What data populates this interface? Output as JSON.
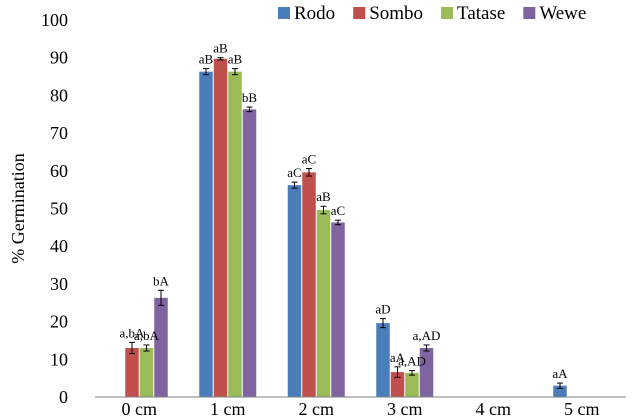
{
  "chart_data": {
    "type": "bar",
    "title": "",
    "xlabel": "",
    "ylabel": "% Germination",
    "ylim": [
      0,
      100
    ],
    "yticks": [
      0,
      10,
      20,
      30,
      40,
      50,
      60,
      70,
      80,
      90,
      100
    ],
    "grid": false,
    "legend_position": "top-right",
    "categories": [
      "0 cm",
      "1 cm",
      "2 cm",
      "3 cm",
      "4 cm",
      "5 cm"
    ],
    "series": [
      {
        "name": "Rodo",
        "color": "#4a7ebb",
        "values": [
          0,
          86.3,
          56.2,
          19.6,
          0,
          3.0
        ],
        "errors": [
          0,
          0.8,
          0.8,
          1.2,
          0,
          0.7
        ],
        "labels": [
          "",
          "aB",
          "aC",
          "aD",
          "",
          "aA"
        ]
      },
      {
        "name": "Sombo",
        "color": "#c0504d",
        "values": [
          13.0,
          89.7,
          59.6,
          6.6,
          0,
          0
        ],
        "errors": [
          1.5,
          0.3,
          1.0,
          1.4,
          0,
          0
        ],
        "labels": [
          "a,bA",
          "aB",
          "aC",
          "aA",
          "",
          ""
        ]
      },
      {
        "name": "Tatase",
        "color": "#9bbb59",
        "values": [
          13.0,
          86.3,
          49.6,
          6.4,
          0,
          0
        ],
        "errors": [
          0.8,
          0.8,
          1.0,
          0.6,
          0,
          0
        ],
        "labels": [
          "a,bA",
          "aB",
          "aB",
          "a,AD",
          "",
          ""
        ]
      },
      {
        "name": "Wewe",
        "color": "#8064a2",
        "values": [
          26.3,
          76.3,
          46.3,
          13.0,
          0,
          0
        ],
        "errors": [
          2.0,
          0.6,
          0.6,
          0.8,
          0,
          0
        ],
        "labels": [
          "bA",
          "bB",
          "aC",
          "a,AD",
          "",
          ""
        ]
      }
    ]
  }
}
